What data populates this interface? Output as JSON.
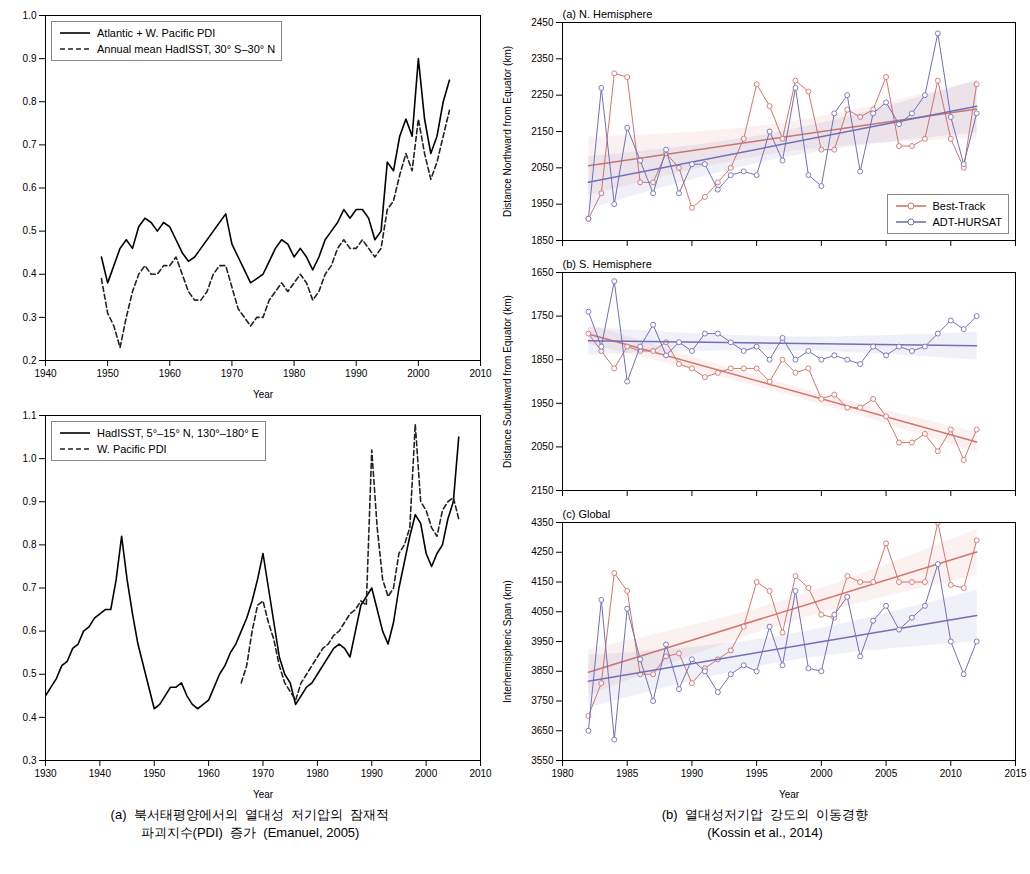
{
  "chart_data": [
    {
      "type": "line",
      "xlabel": "Year",
      "xlim": [
        1940,
        2010
      ],
      "xticks": [
        1940,
        1950,
        1960,
        1970,
        1980,
        1990,
        2000,
        2010
      ],
      "ylim": [
        0.2,
        1.0
      ],
      "yticks": [
        0.2,
        0.3,
        0.4,
        0.5,
        0.6,
        0.7,
        0.8,
        0.9,
        {
          "value": 1.0,
          "label": "1.0"
        }
      ],
      "grid": false,
      "legend": "upper left",
      "series": [
        {
          "name": "Atlantic + W. Pacific PDI",
          "color": "#000000",
          "line_style": "solid",
          "x": [
            1949,
            1950,
            1951,
            1952,
            1953,
            1954,
            1955,
            1956,
            1957,
            1958,
            1959,
            1960,
            1961,
            1962,
            1963,
            1964,
            1965,
            1966,
            1967,
            1968,
            1969,
            1970,
            1971,
            1972,
            1973,
            1974,
            1975,
            1976,
            1977,
            1978,
            1979,
            1980,
            1981,
            1982,
            1983,
            1984,
            1985,
            1986,
            1987,
            1988,
            1989,
            1990,
            1991,
            1992,
            1993,
            1994,
            1995,
            1996,
            1997,
            1998,
            1999,
            2000,
            2001,
            2002,
            2003,
            2004,
            2005
          ],
          "values": [
            0.44,
            0.38,
            0.42,
            0.46,
            0.48,
            0.46,
            0.51,
            0.53,
            0.52,
            0.5,
            0.52,
            0.51,
            0.48,
            0.45,
            0.43,
            0.44,
            0.46,
            0.48,
            0.5,
            0.52,
            0.54,
            0.47,
            0.44,
            0.41,
            0.38,
            0.39,
            0.4,
            0.43,
            0.46,
            0.48,
            0.47,
            0.44,
            0.46,
            0.44,
            0.41,
            0.44,
            0.48,
            0.5,
            0.52,
            0.55,
            0.53,
            0.55,
            0.55,
            0.53,
            0.48,
            0.5,
            0.66,
            0.64,
            0.72,
            0.76,
            0.72,
            0.9,
            0.76,
            0.68,
            0.72,
            0.8,
            0.85
          ]
        },
        {
          "name": "Annual mean HadISST, 30° S–30° N",
          "color": "#222222",
          "line_style": "dashed",
          "x": [
            1949,
            1950,
            1951,
            1952,
            1953,
            1954,
            1955,
            1956,
            1957,
            1958,
            1959,
            1960,
            1961,
            1962,
            1963,
            1964,
            1965,
            1966,
            1967,
            1968,
            1969,
            1970,
            1971,
            1972,
            1973,
            1974,
            1975,
            1976,
            1977,
            1978,
            1979,
            1980,
            1981,
            1982,
            1983,
            1984,
            1985,
            1986,
            1987,
            1988,
            1989,
            1990,
            1991,
            1992,
            1993,
            1994,
            1995,
            1996,
            1997,
            1998,
            1999,
            2000,
            2001,
            2002,
            2003,
            2004,
            2005
          ],
          "values": [
            0.39,
            0.31,
            0.28,
            0.23,
            0.3,
            0.36,
            0.4,
            0.42,
            0.4,
            0.4,
            0.42,
            0.42,
            0.44,
            0.4,
            0.36,
            0.34,
            0.34,
            0.36,
            0.4,
            0.42,
            0.42,
            0.37,
            0.32,
            0.3,
            0.28,
            0.3,
            0.3,
            0.34,
            0.36,
            0.38,
            0.36,
            0.38,
            0.4,
            0.38,
            0.34,
            0.36,
            0.4,
            0.42,
            0.46,
            0.48,
            0.46,
            0.46,
            0.48,
            0.46,
            0.44,
            0.46,
            0.55,
            0.57,
            0.63,
            0.68,
            0.64,
            0.76,
            0.68,
            0.62,
            0.66,
            0.72,
            0.78
          ]
        }
      ]
    },
    {
      "type": "line",
      "xlabel": "Year",
      "caption": "(a)  북서태평양에서의  열대성  저기압의  잠재적\n파괴지수(PDI)  증가  (Emanuel, 2005)",
      "xlim": [
        1930,
        2010
      ],
      "xticks": [
        1930,
        1940,
        1950,
        1960,
        1970,
        1980,
        1990,
        2000,
        2010
      ],
      "ylim": [
        0.3,
        1.1
      ],
      "yticks": [
        0.3,
        0.4,
        0.5,
        0.6,
        0.7,
        0.8,
        0.9,
        {
          "value": 1.0,
          "label": "1.0"
        },
        1.1
      ],
      "grid": false,
      "legend": "upper left",
      "series": [
        {
          "name": "HadISST, 5°–15° N, 130°–180° E",
          "color": "#000000",
          "line_style": "solid",
          "x": [
            1930,
            1931,
            1932,
            1933,
            1934,
            1935,
            1936,
            1937,
            1938,
            1939,
            1940,
            1941,
            1942,
            1943,
            1944,
            1945,
            1946,
            1947,
            1948,
            1949,
            1950,
            1951,
            1952,
            1953,
            1954,
            1955,
            1956,
            1957,
            1958,
            1959,
            1960,
            1961,
            1962,
            1963,
            1964,
            1965,
            1966,
            1967,
            1968,
            1969,
            1970,
            1971,
            1972,
            1973,
            1974,
            1975,
            1976,
            1977,
            1978,
            1979,
            1980,
            1981,
            1982,
            1983,
            1984,
            1985,
            1986,
            1987,
            1988,
            1989,
            1990,
            1991,
            1992,
            1993,
            1994,
            1995,
            1996,
            1997,
            1998,
            1999,
            2000,
            2001,
            2002,
            2003,
            2004,
            2005,
            2006
          ],
          "values": [
            0.45,
            0.47,
            0.49,
            0.52,
            0.53,
            0.56,
            0.57,
            0.6,
            0.61,
            0.63,
            0.64,
            0.65,
            0.65,
            0.72,
            0.82,
            0.72,
            0.64,
            0.57,
            0.52,
            0.47,
            0.42,
            0.43,
            0.45,
            0.47,
            0.47,
            0.48,
            0.45,
            0.43,
            0.42,
            0.43,
            0.44,
            0.47,
            0.5,
            0.52,
            0.55,
            0.57,
            0.6,
            0.63,
            0.67,
            0.72,
            0.78,
            0.7,
            0.62,
            0.54,
            0.5,
            0.48,
            0.43,
            0.45,
            0.47,
            0.48,
            0.5,
            0.52,
            0.54,
            0.56,
            0.57,
            0.56,
            0.54,
            0.6,
            0.66,
            0.68,
            0.7,
            0.65,
            0.6,
            0.57,
            0.62,
            0.7,
            0.76,
            0.82,
            0.87,
            0.85,
            0.78,
            0.75,
            0.78,
            0.8,
            0.86,
            0.9,
            1.05
          ]
        },
        {
          "name": "W. Pacific PDI",
          "color": "#222222",
          "line_style": "dashed",
          "x": [
            1966,
            1967,
            1968,
            1969,
            1970,
            1971,
            1972,
            1973,
            1974,
            1975,
            1976,
            1977,
            1978,
            1979,
            1980,
            1981,
            1982,
            1983,
            1984,
            1985,
            1986,
            1987,
            1988,
            1989,
            1990,
            1991,
            1992,
            1993,
            1994,
            1995,
            1996,
            1997,
            1998,
            1999,
            2000,
            2001,
            2002,
            2003,
            2004,
            2005,
            2006
          ],
          "values": [
            0.48,
            0.52,
            0.6,
            0.66,
            0.67,
            0.62,
            0.58,
            0.52,
            0.48,
            0.46,
            0.44,
            0.48,
            0.5,
            0.52,
            0.54,
            0.56,
            0.57,
            0.59,
            0.6,
            0.62,
            0.64,
            0.65,
            0.67,
            0.66,
            1.02,
            0.84,
            0.72,
            0.68,
            0.7,
            0.78,
            0.8,
            0.84,
            1.08,
            0.9,
            0.88,
            0.84,
            0.82,
            0.88,
            0.9,
            0.91,
            0.86
          ]
        }
      ]
    },
    {
      "type": "line",
      "title": "(a) N. Hemisphere",
      "ylabel": "Distance Northward from Equator (km)",
      "xlim": [
        1980,
        2015
      ],
      "xticks": [
        1980,
        1985,
        1990,
        1995,
        2000,
        2005,
        2010,
        2015
      ],
      "ylim": [
        1850,
        2450
      ],
      "yticks": [
        1850,
        1950,
        2050,
        2150,
        2250,
        2350,
        2450
      ],
      "tick_labels": "y",
      "grid": false,
      "legend": "lower right",
      "series": [
        {
          "name": "Best-Track",
          "color": "#d4756a",
          "type": "regression",
          "marker": "circle",
          "x": [
            1982,
            1983,
            1984,
            1985,
            1986,
            1987,
            1988,
            1989,
            1990,
            1991,
            1992,
            1993,
            1994,
            1995,
            1996,
            1997,
            1998,
            1999,
            2000,
            2001,
            2002,
            2003,
            2004,
            2005,
            2006,
            2007,
            2008,
            2009,
            2010,
            2011,
            2012
          ],
          "values": [
            1910,
            1980,
            2310,
            2300,
            2010,
            2010,
            2090,
            2050,
            1940,
            1970,
            2010,
            2050,
            2130,
            2280,
            2220,
            2130,
            2290,
            2260,
            2100,
            2100,
            2210,
            2190,
            2210,
            2300,
            2110,
            2110,
            2130,
            2290,
            2130,
            2050,
            2280
          ]
        },
        {
          "name": "ADT-HURSAT",
          "color": "#7070b8",
          "type": "regression",
          "marker": "circle",
          "x": [
            1982,
            1983,
            1984,
            1985,
            1986,
            1987,
            1988,
            1989,
            1990,
            1991,
            1992,
            1993,
            1994,
            1995,
            1996,
            1997,
            1998,
            1999,
            2000,
            2001,
            2002,
            2003,
            2004,
            2005,
            2006,
            2007,
            2008,
            2009,
            2010,
            2011,
            2012
          ],
          "values": [
            1910,
            2270,
            1950,
            2160,
            2070,
            1980,
            2100,
            1980,
            2060,
            2060,
            1990,
            2030,
            2040,
            2030,
            2150,
            2070,
            2270,
            2030,
            2000,
            2200,
            2250,
            2040,
            2200,
            2230,
            2170,
            2200,
            2250,
            2420,
            2190,
            2060,
            2200
          ]
        }
      ]
    },
    {
      "type": "line",
      "title": "(b) S. Hemisphere",
      "ylabel": "Distance Southward from Equator (km)",
      "xlim": [
        1980,
        2015
      ],
      "xticks": [
        1980,
        1985,
        1990,
        1995,
        2000,
        2005,
        2010,
        2015
      ],
      "ylim": [
        2150,
        1650
      ],
      "yticks": [
        1650,
        1750,
        1850,
        1950,
        2050,
        2150
      ],
      "tick_labels": "y",
      "grid": false,
      "series": [
        {
          "color": "#d4756a",
          "type": "regression",
          "marker": "circle",
          "x": [
            1982,
            1983,
            1984,
            1985,
            1986,
            1987,
            1988,
            1989,
            1990,
            1991,
            1992,
            1993,
            1994,
            1995,
            1996,
            1997,
            1998,
            1999,
            2000,
            2001,
            2002,
            2003,
            2004,
            2005,
            2006,
            2007,
            2008,
            2009,
            2010,
            2011,
            2012
          ],
          "values": [
            1790,
            1830,
            1870,
            1820,
            1830,
            1830,
            1810,
            1860,
            1870,
            1890,
            1880,
            1870,
            1870,
            1870,
            1900,
            1850,
            1880,
            1870,
            1940,
            1930,
            1960,
            1960,
            1940,
            1980,
            2040,
            2040,
            2020,
            2060,
            2010,
            2080,
            2010
          ]
        },
        {
          "color": "#7070b8",
          "type": "regression",
          "marker": "circle",
          "x": [
            1982,
            1983,
            1984,
            1985,
            1986,
            1987,
            1988,
            1989,
            1990,
            1991,
            1992,
            1993,
            1994,
            1995,
            1996,
            1997,
            1998,
            1999,
            2000,
            2001,
            2002,
            2003,
            2004,
            2005,
            2006,
            2007,
            2008,
            2009,
            2010,
            2011,
            2012
          ],
          "values": [
            1740,
            1820,
            1670,
            1900,
            1820,
            1770,
            1840,
            1810,
            1830,
            1790,
            1790,
            1810,
            1830,
            1820,
            1850,
            1800,
            1850,
            1830,
            1850,
            1840,
            1850,
            1860,
            1820,
            1840,
            1820,
            1830,
            1820,
            1790,
            1760,
            1780,
            1750
          ]
        }
      ]
    },
    {
      "type": "line",
      "title": "(c) Global",
      "ylabel": "Interhemispheric Span (km)",
      "xlabel": "Year",
      "caption": "(b)  열대성저기압  강도의  이동경향\n(Kossin et al., 2014)",
      "xlim": [
        1980,
        2015
      ],
      "xticks": [
        1980,
        1985,
        1990,
        1995,
        2000,
        2005,
        2010,
        2015
      ],
      "ylim": [
        3550,
        4350
      ],
      "yticks": [
        3550,
        3650,
        3750,
        3850,
        3950,
        4050,
        4150,
        4250,
        4350
      ],
      "grid": false,
      "series": [
        {
          "color": "#d4756a",
          "type": "regression",
          "marker": "circle",
          "x": [
            1982,
            1983,
            1984,
            1985,
            1986,
            1987,
            1988,
            1989,
            1990,
            1991,
            1992,
            1993,
            1994,
            1995,
            1996,
            1997,
            1998,
            1999,
            2000,
            2001,
            2002,
            2003,
            2004,
            2005,
            2006,
            2007,
            2008,
            2009,
            2010,
            2011,
            2012
          ],
          "values": [
            3700,
            3810,
            4180,
            4120,
            3840,
            3840,
            3900,
            3910,
            3810,
            3860,
            3890,
            3920,
            4000,
            4150,
            4120,
            3980,
            4170,
            4130,
            4040,
            4030,
            4170,
            4150,
            4150,
            4280,
            4150,
            4150,
            4150,
            4350,
            4140,
            4130,
            4290
          ]
        },
        {
          "color": "#7070b8",
          "type": "regression",
          "marker": "circle",
          "x": [
            1982,
            1983,
            1984,
            1985,
            1986,
            1987,
            1988,
            1989,
            1990,
            1991,
            1992,
            1993,
            1994,
            1995,
            1996,
            1997,
            1998,
            1999,
            2000,
            2001,
            2002,
            2003,
            2004,
            2005,
            2006,
            2007,
            2008,
            2009,
            2010,
            2011,
            2012
          ],
          "values": [
            3650,
            4090,
            3620,
            4060,
            3890,
            3750,
            3940,
            3790,
            3890,
            3850,
            3780,
            3840,
            3870,
            3850,
            4000,
            3870,
            4120,
            3860,
            3850,
            4040,
            4100,
            3900,
            4020,
            4070,
            3990,
            4030,
            4070,
            4210,
            3950,
            3840,
            3950
          ]
        }
      ]
    }
  ]
}
